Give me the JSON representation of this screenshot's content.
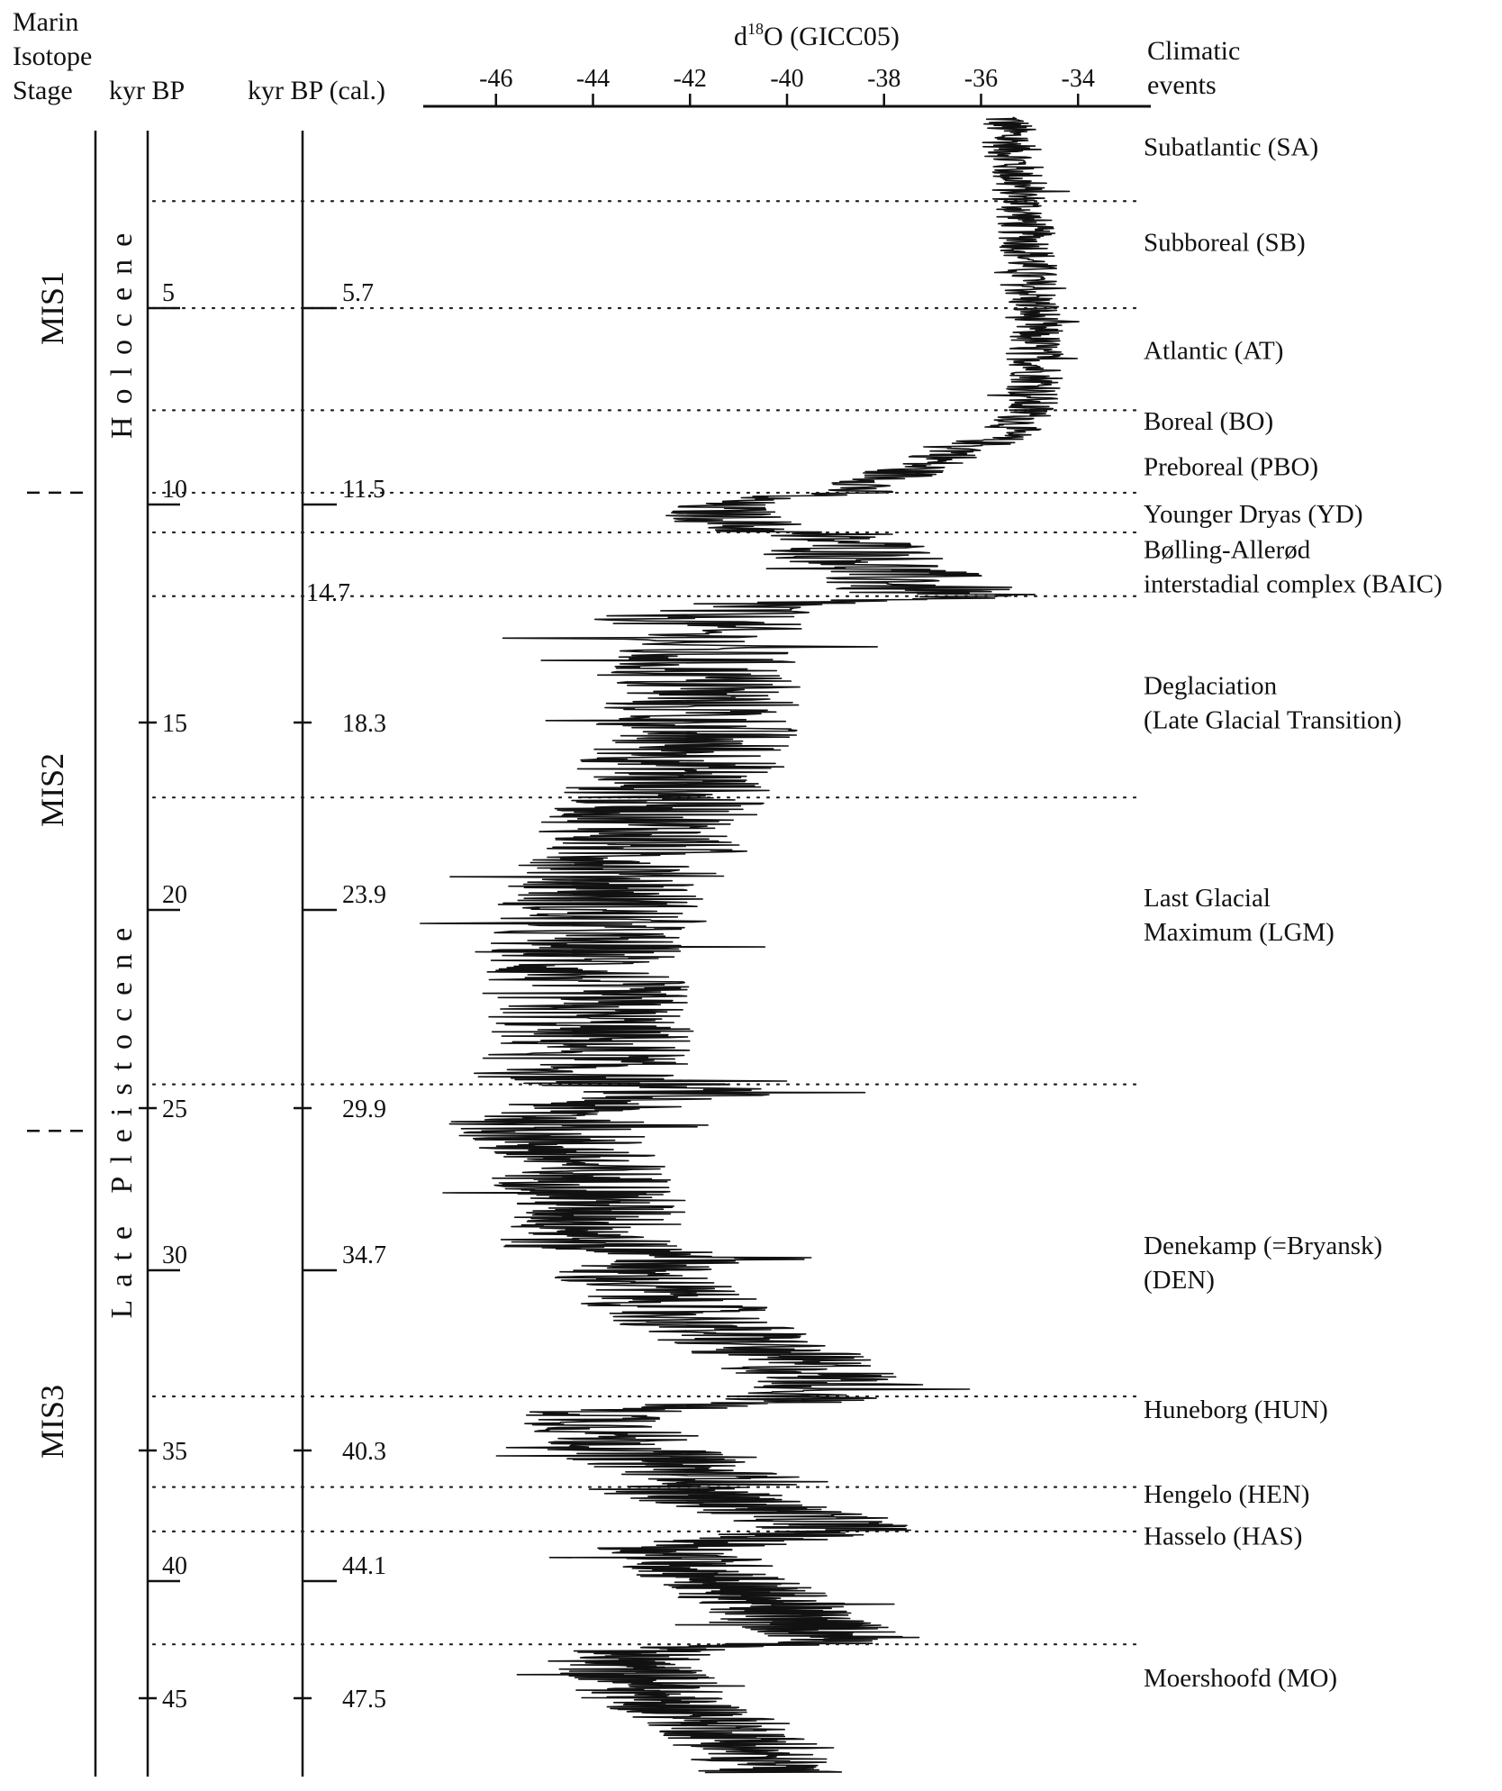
{
  "headers": {
    "stage": [
      "Marin",
      "Isotope",
      "Stage"
    ],
    "kyr": "kyr BP",
    "kyr_cal": "kyr BP (cal.)",
    "climatic": [
      "Climatic",
      "events"
    ]
  },
  "chart_data": {
    "type": "line",
    "title": "",
    "xlabel_main": "d",
    "xlabel_sup": "18",
    "xlabel_rest": "O (GICC05)",
    "xlim": [
      -47.5,
      -32.5
    ],
    "x_ticks": [
      -46,
      -44,
      -42,
      -40,
      -38,
      -36,
      -34
    ],
    "kyr_ticks": [
      {
        "label": "5",
        "style": "long",
        "cal": "5.7",
        "depth": 5.0
      },
      {
        "label": "10",
        "style": "long",
        "cal": "11.5",
        "depth": 10.0
      },
      {
        "label": "",
        "style": "none",
        "cal": "14.7",
        "depth": 12.6
      },
      {
        "label": "15",
        "style": "cross",
        "cal": "18.3",
        "depth": 15.0
      },
      {
        "label": "20",
        "style": "long",
        "cal": "23.9",
        "depth": 20.0
      },
      {
        "label": "25",
        "style": "cross",
        "cal": "29.9",
        "depth": 25.0
      },
      {
        "label": "30",
        "style": "long",
        "cal": "34.7",
        "depth": 30.0
      },
      {
        "label": "35",
        "style": "cross",
        "cal": "40.3",
        "depth": 35.0
      },
      {
        "label": "40",
        "style": "long",
        "cal": "44.1",
        "depth": 40.0
      },
      {
        "label": "45",
        "style": "cross",
        "cal": "47.5",
        "depth": 45.0
      }
    ],
    "stages": [
      {
        "label": "MIS1",
        "center": 5.0
      },
      {
        "label": "MIS2",
        "center": 16.8
      },
      {
        "label": "MIS3",
        "center": 34.2
      }
    ],
    "stage_boundaries": [
      9.7,
      25.7
    ],
    "epochs": [
      {
        "label": "Holocene",
        "from": 1.5,
        "to": 9.5
      },
      {
        "label": "Late Pleistocene",
        "from": 19.5,
        "to": 32.0
      }
    ],
    "event_boundaries": [
      2.2,
      5.0,
      7.6,
      9.7,
      10.7,
      12.3,
      17.0,
      24.4,
      33.5,
      36.4,
      38.1,
      42.7
    ],
    "events": [
      {
        "lines": [
          "Subatlantic (SA)"
        ],
        "pos": 1.0
      },
      {
        "lines": [
          "Subboreal (SB)"
        ],
        "pos": 3.5
      },
      {
        "lines": [
          "Atlantic (AT)"
        ],
        "pos": 6.3
      },
      {
        "lines": [
          "Boreal (BO)"
        ],
        "pos": 8.1
      },
      {
        "lines": [
          "Preboreal (PBO)"
        ],
        "pos": 9.25
      },
      {
        "lines": [
          "Younger Dryas (YD)"
        ],
        "pos": 10.45
      },
      {
        "lines": [
          "Bølling-Allerød",
          "interstadial complex (BAIC)"
        ],
        "pos": 11.35
      },
      {
        "lines": [
          "Deglaciation",
          "(Late Glacial Transition)"
        ],
        "pos": 14.4
      },
      {
        "lines": [
          "Last Glacial",
          "Maximum (LGM)"
        ],
        "pos": 19.9
      },
      {
        "lines": [
          "Denekamp (=Bryansk)",
          "(DEN)"
        ],
        "pos": 29.5
      },
      {
        "lines": [
          "Huneborg (HUN)"
        ],
        "pos": 34.1
      },
      {
        "lines": [
          "Hengelo (HEN)"
        ],
        "pos": 37.0
      },
      {
        "lines": [
          "Hasselo (HAS)"
        ],
        "pos": 38.6
      },
      {
        "lines": [
          "Moershoofd (MO)"
        ],
        "pos": 44.5
      }
    ],
    "series": [
      {
        "points": [
          [
            0.0,
            -35.5
          ],
          [
            0.6,
            -35.4
          ],
          [
            1.2,
            -35.3
          ],
          [
            2.0,
            -35.2
          ],
          [
            2.8,
            -35.1
          ],
          [
            3.6,
            -35.0
          ],
          [
            4.4,
            -35.0
          ],
          [
            5.2,
            -34.9
          ],
          [
            6.0,
            -34.9
          ],
          [
            6.8,
            -34.8
          ],
          [
            7.4,
            -35.0
          ],
          [
            7.8,
            -35.1
          ],
          [
            8.2,
            -35.5
          ],
          [
            8.6,
            -36.3
          ],
          [
            9.0,
            -37.2
          ],
          [
            9.4,
            -38.0
          ],
          [
            9.7,
            -38.8
          ],
          [
            9.85,
            -40.8
          ],
          [
            10.0,
            -41.5
          ],
          [
            10.3,
            -41.3
          ],
          [
            10.6,
            -40.7
          ],
          [
            10.75,
            -39.8
          ],
          [
            11.0,
            -38.5
          ],
          [
            11.5,
            -38.2
          ],
          [
            12.0,
            -37.5
          ],
          [
            12.3,
            -36.9
          ],
          [
            12.45,
            -40.0
          ],
          [
            12.7,
            -41.8
          ],
          [
            13.5,
            -42.0
          ],
          [
            14.5,
            -41.8
          ],
          [
            15.5,
            -41.9
          ],
          [
            16.5,
            -42.3
          ],
          [
            17.5,
            -42.8
          ],
          [
            18.5,
            -43.2
          ],
          [
            19.5,
            -43.6
          ],
          [
            20.5,
            -44.2
          ],
          [
            21.5,
            -44.3
          ],
          [
            22.5,
            -44.1
          ],
          [
            23.5,
            -44.0
          ],
          [
            24.2,
            -44.4
          ],
          [
            24.6,
            -42.0
          ],
          [
            25.0,
            -44.5
          ],
          [
            25.5,
            -45.0
          ],
          [
            26.5,
            -44.6
          ],
          [
            27.5,
            -44.0
          ],
          [
            28.5,
            -43.9
          ],
          [
            29.3,
            -44.2
          ],
          [
            29.6,
            -41.0
          ],
          [
            30.0,
            -43.5
          ],
          [
            30.5,
            -42.8
          ],
          [
            31.5,
            -41.8
          ],
          [
            32.5,
            -40.0
          ],
          [
            33.2,
            -38.8
          ],
          [
            33.6,
            -39.8
          ],
          [
            33.9,
            -43.8
          ],
          [
            34.5,
            -43.6
          ],
          [
            35.2,
            -43.0
          ],
          [
            35.8,
            -42.0
          ],
          [
            36.2,
            -40.8
          ],
          [
            36.5,
            -42.5
          ],
          [
            37.0,
            -41.2
          ],
          [
            37.5,
            -39.8
          ],
          [
            38.0,
            -38.8
          ],
          [
            38.4,
            -40.8
          ],
          [
            38.8,
            -42.3
          ],
          [
            39.5,
            -41.8
          ],
          [
            40.5,
            -40.8
          ],
          [
            41.5,
            -40.0
          ],
          [
            42.3,
            -39.0
          ],
          [
            42.6,
            -38.6
          ],
          [
            42.9,
            -42.8
          ],
          [
            43.5,
            -43.5
          ],
          [
            44.2,
            -42.9
          ],
          [
            45.0,
            -42.8
          ],
          [
            45.6,
            -41.7
          ],
          [
            46.3,
            -41.0
          ],
          [
            47.0,
            -40.6
          ],
          [
            47.5,
            -40.3
          ]
        ],
        "noise": [
          [
            0,
            0.6
          ],
          [
            8,
            0.6
          ],
          [
            9.7,
            1.0
          ],
          [
            12.5,
            2.2
          ],
          [
            24,
            2.2
          ],
          [
            26,
            2.0
          ],
          [
            33.5,
            1.8
          ],
          [
            42,
            1.6
          ],
          [
            47.5,
            1.5
          ]
        ]
      }
    ]
  }
}
